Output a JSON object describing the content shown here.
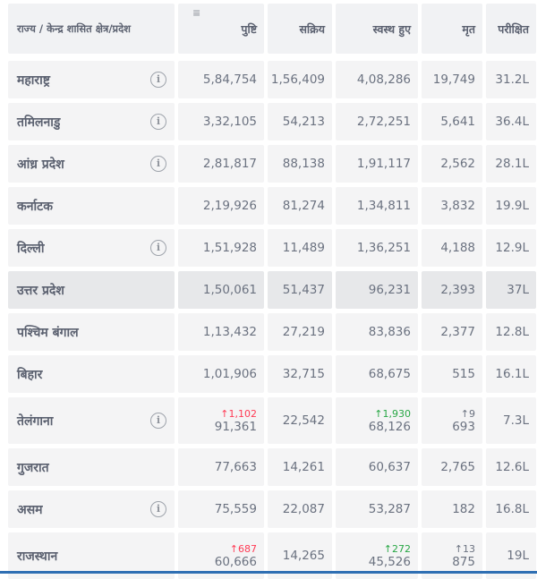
{
  "header": {
    "state_label": "राज्य / केन्द्र शासित क्षेत्र/प्रदेश",
    "columns": [
      "पुष्टि",
      "सक्रिय",
      "स्वस्थ हुए",
      "मृत",
      "परीक्षित"
    ]
  },
  "rows": [
    {
      "name": "महाराष्ट्र",
      "info": true,
      "confirmed": "5,84,754",
      "active": "1,56,409",
      "recovered": "4,08,286",
      "deceased": "19,749",
      "tested": "31.2L"
    },
    {
      "name": "तमिलनाडु",
      "info": true,
      "confirmed": "3,32,105",
      "active": "54,213",
      "recovered": "2,72,251",
      "deceased": "5,641",
      "tested": "36.4L"
    },
    {
      "name": "आंध्र प्रदेश",
      "info": true,
      "confirmed": "2,81,817",
      "active": "88,138",
      "recovered": "1,91,117",
      "deceased": "2,562",
      "tested": "28.1L"
    },
    {
      "name": "कर्नाटक",
      "info": false,
      "confirmed": "2,19,926",
      "active": "81,274",
      "recovered": "1,34,811",
      "deceased": "3,832",
      "tested": "19.9L"
    },
    {
      "name": "दिल्ली",
      "info": true,
      "confirmed": "1,51,928",
      "active": "11,489",
      "recovered": "1,36,251",
      "deceased": "4,188",
      "tested": "12.9L"
    },
    {
      "name": "उत्तर प्रदेश",
      "info": false,
      "confirmed": "1,50,061",
      "active": "51,437",
      "recovered": "96,231",
      "deceased": "2,393",
      "tested": "37L"
    },
    {
      "name": "पश्चिम बंगाल",
      "info": false,
      "confirmed": "1,13,432",
      "active": "27,219",
      "recovered": "83,836",
      "deceased": "2,377",
      "tested": "12.8L"
    },
    {
      "name": "बिहार",
      "info": false,
      "confirmed": "1,01,906",
      "active": "32,715",
      "recovered": "68,675",
      "deceased": "515",
      "tested": "16.1L"
    },
    {
      "name": "तेलंगाना",
      "info": true,
      "confirmed": "91,361",
      "confirmed_delta": "↑1,102",
      "active": "22,542",
      "recovered": "68,126",
      "recovered_delta": "↑1,930",
      "deceased": "693",
      "deceased_delta": "↑9",
      "tested": "7.3L"
    },
    {
      "name": "गुजरात",
      "info": false,
      "confirmed": "77,663",
      "active": "14,261",
      "recovered": "60,637",
      "deceased": "2,765",
      "tested": "12.6L"
    },
    {
      "name": "असम",
      "info": true,
      "confirmed": "75,559",
      "active": "22,087",
      "recovered": "53,287",
      "deceased": "182",
      "tested": "16.8L"
    },
    {
      "name": "राजस्थान",
      "info": false,
      "confirmed": "60,666",
      "confirmed_delta": "↑687",
      "active": "14,265",
      "recovered": "45,526",
      "recovered_delta": "↑272",
      "deceased": "875",
      "deceased_delta": "↑13",
      "tested": "19L"
    }
  ],
  "colors": {
    "cell_bg": "#f4f4f5",
    "highlight_bg": "#e7e8ea",
    "delta_red": "#ff3b55",
    "delta_green": "#28a745"
  },
  "icons": {
    "info": "info-circle-icon",
    "sort": "sort-icon"
  }
}
